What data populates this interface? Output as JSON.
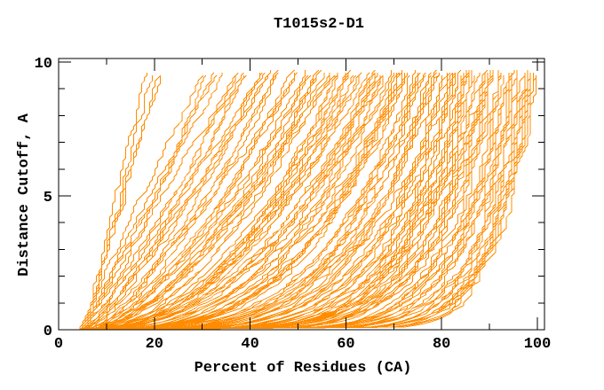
{
  "figure": {
    "background": "#ffffff"
  },
  "chart_data": {
    "type": "line",
    "title": "T1015s2-D1",
    "xlabel": "Percent of Residues (CA)",
    "ylabel": "Distance Cutoff, A",
    "xlim": [
      0,
      100
    ],
    "ylim": [
      0,
      10
    ],
    "grid": false,
    "legend": null,
    "x_ticks_major": [
      0,
      20,
      40,
      60,
      80,
      100
    ],
    "x_tick_labels": [
      "0",
      "20",
      "40",
      "60",
      "80",
      "100"
    ],
    "x_ticks_minor": [
      10,
      30,
      50,
      70,
      90
    ],
    "y_ticks_major": [
      0,
      5,
      10
    ],
    "y_tick_labels": [
      "0",
      "5",
      "10"
    ],
    "y_ticks_minor": [
      1,
      2,
      3,
      4,
      6,
      7,
      8,
      9
    ],
    "axis_color": "#000000",
    "series_color": "#ff8c00",
    "series_description": "Approximately 130-150 overlapping per-model accuracy curves (CASP GDT-style). Every curve rises monotonically from about 4-7% of residues at 0 A cutoff to its final coverage at about 9.7 A. Steepest (best) curves top out near 18-22% of residues; the bulk of curves end between 60% and 100%, forming a dense orange hatched block on the right side and a solid wedge along the bottom (y < 1 A, x from 5% to ~60%).",
    "curves": {
      "count": 138,
      "seed": 11,
      "y_top": 9.65,
      "y_step": 0.1,
      "x_start_range": [
        4.2,
        7.2
      ],
      "x_top_range": [
        18,
        99.8
      ],
      "x_top_skew": 0.55,
      "left_bundle_count": 4,
      "shape_exponent_start": 1.05,
      "shape_exponent_end": 0.08,
      "jitter_amplitude": 1.0,
      "x_quantum": 0.56
    }
  }
}
